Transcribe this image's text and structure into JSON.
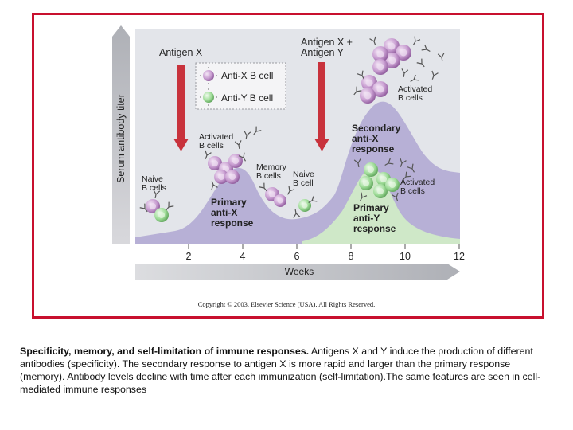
{
  "figure": {
    "y_axis_label": "Serum antibody titer",
    "x_axis_label": "Weeks",
    "x_ticks": [
      "2",
      "4",
      "6",
      "8",
      "10",
      "12"
    ],
    "copyright": "Copyright © 2003, Elsevier Science (USA). All Rights Reserved.",
    "legend": [
      {
        "label": "Anti-X B cell",
        "color": "#b48ac0"
      },
      {
        "label": "Anti-Y B cell",
        "color": "#9ed49a"
      }
    ],
    "arrows": [
      {
        "label_lines": [
          "Antigen X"
        ]
      },
      {
        "label_lines": [
          "Antigen X +",
          "Antigen Y"
        ]
      }
    ],
    "annotations": {
      "naive_1": [
        "Naive",
        "B cells"
      ],
      "activated_1": [
        "Activated",
        "B cells"
      ],
      "memory": [
        "Memory",
        "B cells"
      ],
      "naive_2": [
        "Naive",
        "B cell"
      ],
      "activated_2": [
        "Activated",
        "B cells"
      ],
      "activated_3": [
        "Activated",
        "B cells"
      ]
    },
    "responses": {
      "primary_x": [
        "Primary",
        "anti-X",
        "response"
      ],
      "secondary_x": [
        "Secondary",
        "anti-X",
        "response"
      ],
      "primary_y": [
        "Primary",
        "anti-Y",
        "response"
      ]
    },
    "colors": {
      "frame": "#c8102e",
      "background_panel": "#e3e5ea",
      "anti_x_area": "#b7b0d6",
      "anti_y_area": "#cfe8c8",
      "arrow": "#c8323c"
    }
  },
  "caption": {
    "bold": "Specificity, memory, and self-limitation of immune responses.",
    "text": " Antigens X and Y induce the production of different antibodies (specificity). The secondary response to antigen X is more rapid and larger than the primary response (memory). Antibody levels decline with time after each immunization (self-limitation).The same features are seen in cell-mediated immune responses"
  }
}
